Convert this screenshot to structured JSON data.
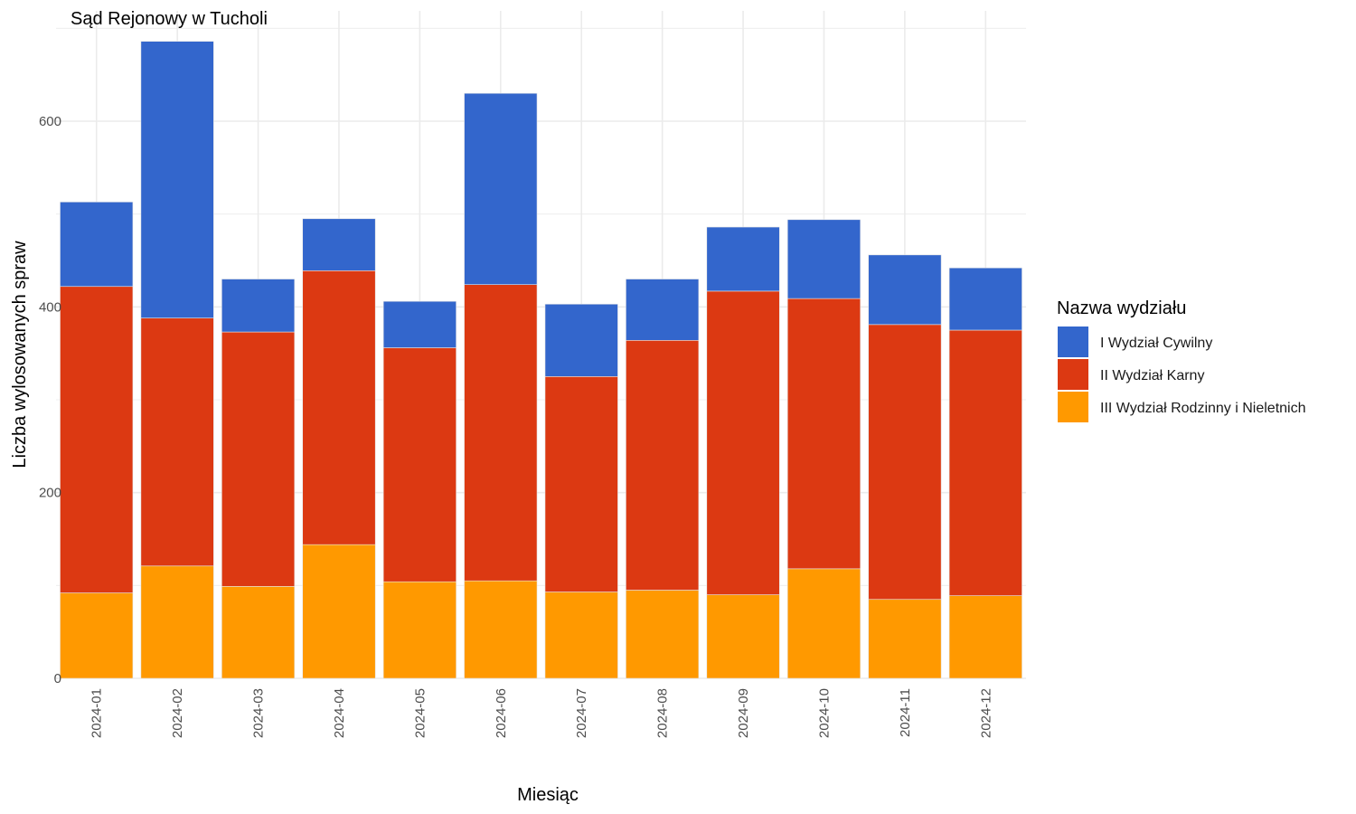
{
  "chart_data": {
    "type": "bar",
    "stacked": true,
    "title": "Sąd Rejonowy w Tucholi",
    "xlabel": "Miesiąc",
    "ylabel": "Liczba wylosowanych spraw",
    "ylim": [
      0,
      700
    ],
    "yticks": [
      0,
      200,
      400,
      600
    ],
    "grid": true,
    "legend": {
      "title": "Nazwa wydziału",
      "position": "right"
    },
    "categories": [
      "2024-01",
      "2024-02",
      "2024-03",
      "2024-04",
      "2024-05",
      "2024-06",
      "2024-07",
      "2024-08",
      "2024-09",
      "2024-10",
      "2024-11",
      "2024-12"
    ],
    "series": [
      {
        "name": "III Wydział Rodzinny i Nieletnich",
        "color": "#FF9900",
        "values": [
          92,
          121,
          99,
          144,
          104,
          105,
          93,
          95,
          90,
          118,
          85,
          89
        ]
      },
      {
        "name": "II Wydział Karny",
        "color": "#DC3912",
        "values": [
          330,
          267,
          274,
          295,
          252,
          319,
          232,
          269,
          327,
          291,
          296,
          286
        ]
      },
      {
        "name": "I Wydział Cywilny",
        "color": "#3366CC",
        "values": [
          91,
          298,
          57,
          56,
          50,
          206,
          78,
          66,
          69,
          85,
          75,
          67
        ]
      }
    ],
    "legend_order": [
      "I Wydział Cywilny",
      "II Wydział Karny",
      "III Wydział Rodzinny i Nieletnich"
    ]
  }
}
